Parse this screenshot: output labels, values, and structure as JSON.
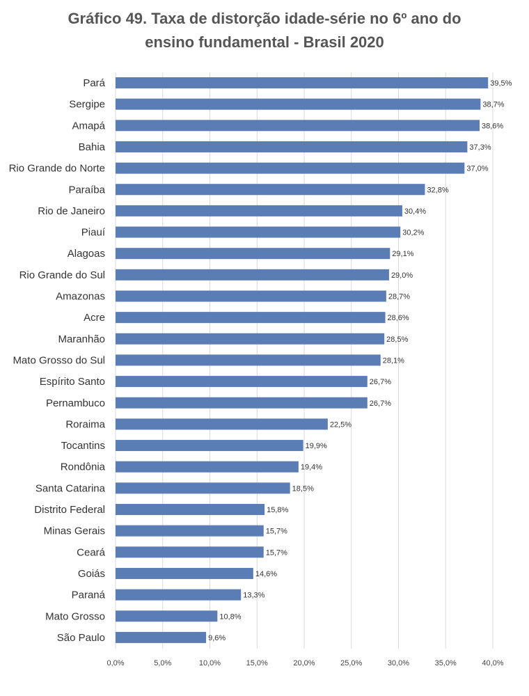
{
  "chart_data": {
    "type": "bar",
    "orientation": "horizontal",
    "title_lines": [
      "Gráfico 49. Taxa de distorção idade-série no 6º ano do",
      "ensino fundamental - Brasil 2020"
    ],
    "categories": [
      "Pará",
      "Sergipe",
      "Amapá",
      "Bahia",
      "Rio Grande do Norte",
      "Paraíba",
      "Rio de Janeiro",
      "Piauí",
      "Alagoas",
      "Rio Grande do Sul",
      "Amazonas",
      "Acre",
      "Maranhão",
      "Mato Grosso do Sul",
      "Espírito Santo",
      "Pernambuco",
      "Roraima",
      "Tocantins",
      "Rondônia",
      "Santa Catarina",
      "Distrito Federal",
      "Minas Gerais",
      "Ceará",
      "Goiás",
      "Paraná",
      "Mato Grosso",
      "São Paulo"
    ],
    "values": [
      39.5,
      38.7,
      38.6,
      37.3,
      37.0,
      32.8,
      30.4,
      30.2,
      29.1,
      29.0,
      28.7,
      28.6,
      28.5,
      28.1,
      26.7,
      26.7,
      22.5,
      19.9,
      19.4,
      18.5,
      15.8,
      15.7,
      15.7,
      14.6,
      13.3,
      10.8,
      9.6
    ],
    "value_labels": [
      "39,5%",
      "38,7%",
      "38,6%",
      "37,3%",
      "37,0%",
      "32,8%",
      "30,4%",
      "30,2%",
      "29,1%",
      "29,0%",
      "28,7%",
      "28,6%",
      "28,5%",
      "28,1%",
      "26,7%",
      "26,7%",
      "22,5%",
      "19,9%",
      "19,4%",
      "18,5%",
      "15,8%",
      "15,7%",
      "15,7%",
      "14,6%",
      "13,3%",
      "10,8%",
      "9,6%"
    ],
    "x_ticks": [
      0,
      5,
      10,
      15,
      20,
      25,
      30,
      35,
      40
    ],
    "x_tick_labels": [
      "0,0%",
      "5,0%",
      "10,0%",
      "15,0%",
      "20,0%",
      "25,0%",
      "30,0%",
      "35,0%",
      "40,0%"
    ],
    "xlim": [
      0,
      40
    ],
    "xlabel": "",
    "ylabel": "",
    "grid": "vertical",
    "legend": "none",
    "bar_color": "#5b7db6",
    "grid_color": "#d9d9d9"
  }
}
